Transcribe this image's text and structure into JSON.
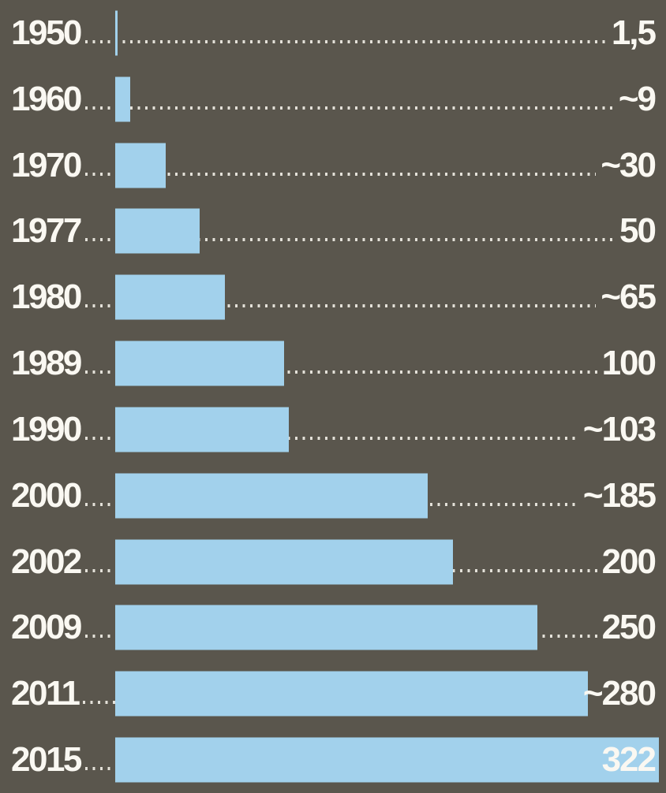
{
  "colors": {
    "background": "#5a564d",
    "bar": "#a2d1ec",
    "label_text": "#faf8f2",
    "leader_dots": "#e4e1d9"
  },
  "chart_data": {
    "type": "bar",
    "orientation": "horizontal",
    "title": "",
    "xlabel": "",
    "ylabel": "",
    "legend": "none",
    "grid": "dotted leader lines per row",
    "xlim": [
      0,
      326
    ],
    "categories": [
      "1950",
      "1960",
      "1970",
      "1977",
      "1980",
      "1989",
      "1990",
      "2000",
      "2002",
      "2009",
      "2011",
      "2015"
    ],
    "values": [
      1.5,
      9,
      30,
      50,
      65,
      100,
      103,
      185,
      200,
      250,
      280,
      322
    ],
    "value_labels": [
      "1,5",
      "~9",
      "~30",
      "50",
      "~65",
      "100",
      "~103",
      "~185",
      "200",
      "250",
      "~280",
      "322"
    ],
    "value_label_inside_bar": [
      false,
      false,
      false,
      false,
      false,
      false,
      false,
      false,
      false,
      false,
      false,
      true
    ]
  }
}
